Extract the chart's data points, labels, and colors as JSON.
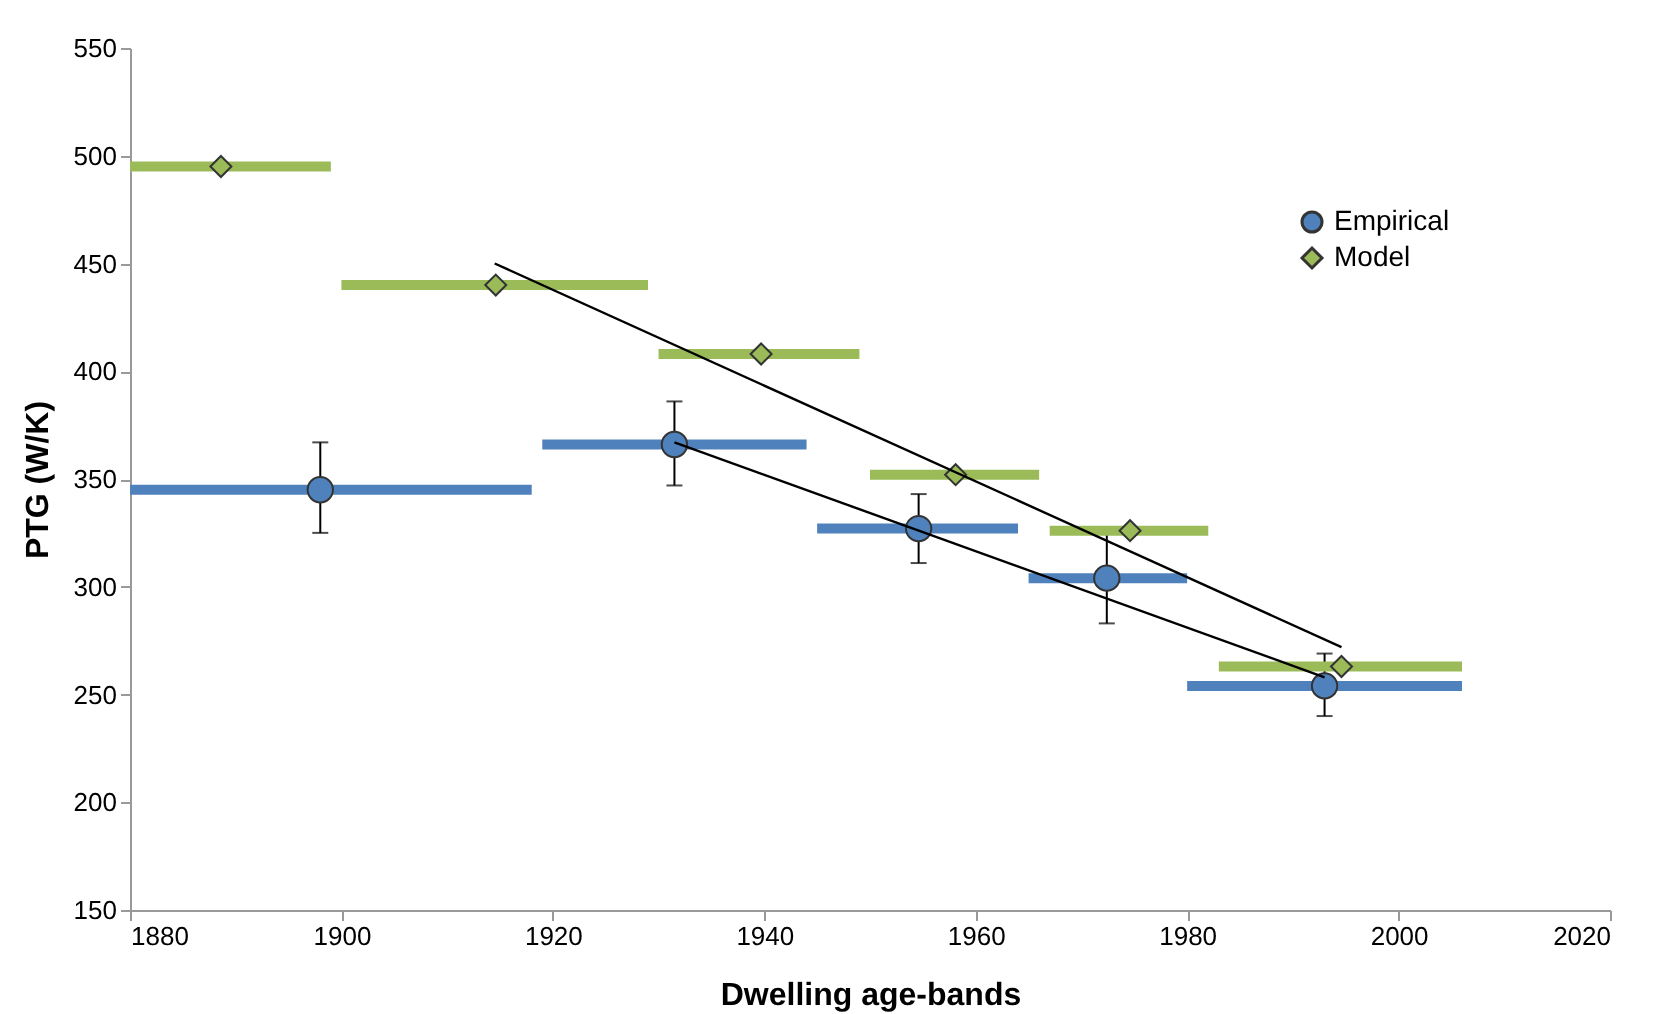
{
  "chart_data": {
    "type": "scatter",
    "xlabel": "Dwelling age-bands",
    "ylabel": "PTG (W/K)",
    "xlim": [
      1880,
      2020
    ],
    "xticks": [
      1880,
      1900,
      1920,
      1940,
      1960,
      1980,
      2000,
      2020
    ],
    "ylim": [
      150,
      550
    ],
    "yticks": [
      150,
      200,
      250,
      300,
      350,
      400,
      450,
      500,
      550
    ],
    "grid": false,
    "legend": "top right",
    "series": [
      {
        "name": "Empirical",
        "type": "scatter",
        "marker": "circle",
        "color": "#4f81bd",
        "x": [
          1898,
          1931.5,
          1954.6,
          1972.4,
          1993
        ],
        "values": [
          345,
          366,
          327,
          304,
          254
        ],
        "errors": [
          [
            325,
            367
          ],
          [
            347,
            386
          ],
          [
            311,
            343
          ],
          [
            283,
            326
          ],
          [
            240,
            269
          ]
        ],
        "xerrors": [
          [
            1880,
            1918
          ],
          [
            1919,
            1944
          ],
          [
            1945,
            1964
          ],
          [
            1965,
            1980
          ],
          [
            1980,
            2006
          ]
        ]
      },
      {
        "name": "Model",
        "type": "scatter",
        "marker": "diamond",
        "color": "#9bbb59",
        "x": [
          1888.6,
          1914.6,
          1939.7,
          1958.1,
          1974.6,
          1994.6
        ],
        "values": [
          495,
          440,
          408,
          352,
          326,
          263
        ],
        "xerrors": [
          [
            1880,
            1899
          ],
          [
            1900,
            1929
          ],
          [
            1930,
            1949
          ],
          [
            1950,
            1966
          ],
          [
            1967,
            1982
          ],
          [
            1983,
            2006
          ]
        ]
      },
      {
        "type": "line",
        "color": "#000000",
        "x": [
          1931.5,
          1993
        ],
        "values": [
          367,
          258
        ]
      },
      {
        "type": "line",
        "color": "#000000",
        "x": [
          1914.5,
          1994.6
        ],
        "values": [
          450,
          272
        ]
      }
    ]
  }
}
